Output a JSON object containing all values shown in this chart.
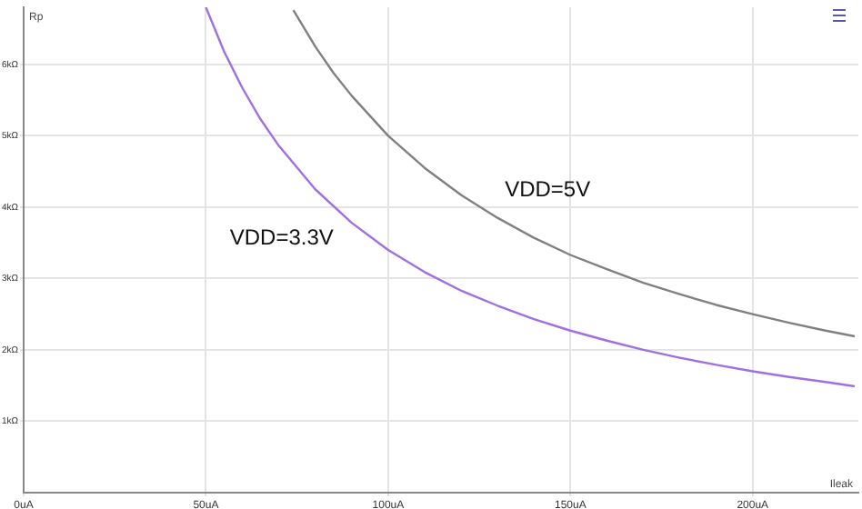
{
  "chart_data": {
    "type": "line",
    "xlabel": "Ileak",
    "ylabel": "Rp",
    "xlim": [
      0,
      229
    ],
    "ylim": [
      0,
      6.8
    ],
    "xticks": [
      {
        "value": 0,
        "label": "0uA"
      },
      {
        "value": 50,
        "label": "50uA"
      },
      {
        "value": 100,
        "label": "100uA"
      },
      {
        "value": 150,
        "label": "150uA"
      },
      {
        "value": 200,
        "label": "200uA"
      }
    ],
    "yticks": [
      {
        "value": 1,
        "label": "1kΩ"
      },
      {
        "value": 2,
        "label": "2kΩ"
      },
      {
        "value": 3,
        "label": "3kΩ"
      },
      {
        "value": 4,
        "label": "4kΩ"
      },
      {
        "value": 5,
        "label": "5kΩ"
      },
      {
        "value": 6,
        "label": "6kΩ"
      }
    ],
    "grid": true,
    "legend": false,
    "marker": "none",
    "line_style": "solid",
    "series": [
      {
        "name": "VDD=3.3V",
        "color": "#a070e0",
        "x": [
          50,
          55,
          60,
          65,
          70,
          80,
          90,
          100,
          110,
          120,
          130,
          140,
          150,
          160,
          170,
          180,
          190,
          200,
          210,
          220,
          228
        ],
        "values": [
          6.8,
          6.18,
          5.67,
          5.23,
          4.86,
          4.25,
          3.78,
          3.4,
          3.09,
          2.83,
          2.62,
          2.43,
          2.27,
          2.13,
          2.0,
          1.89,
          1.79,
          1.7,
          1.62,
          1.55,
          1.49
        ]
      },
      {
        "name": "VDD=5V",
        "color": "#808080",
        "x": [
          74,
          80,
          85,
          90,
          100,
          110,
          120,
          130,
          140,
          150,
          160,
          170,
          180,
          190,
          200,
          210,
          220,
          228
        ],
        "values": [
          6.76,
          6.25,
          5.88,
          5.56,
          5.0,
          4.55,
          4.17,
          3.85,
          3.57,
          3.33,
          3.13,
          2.94,
          2.78,
          2.63,
          2.5,
          2.38,
          2.27,
          2.19
        ]
      }
    ]
  }
}
